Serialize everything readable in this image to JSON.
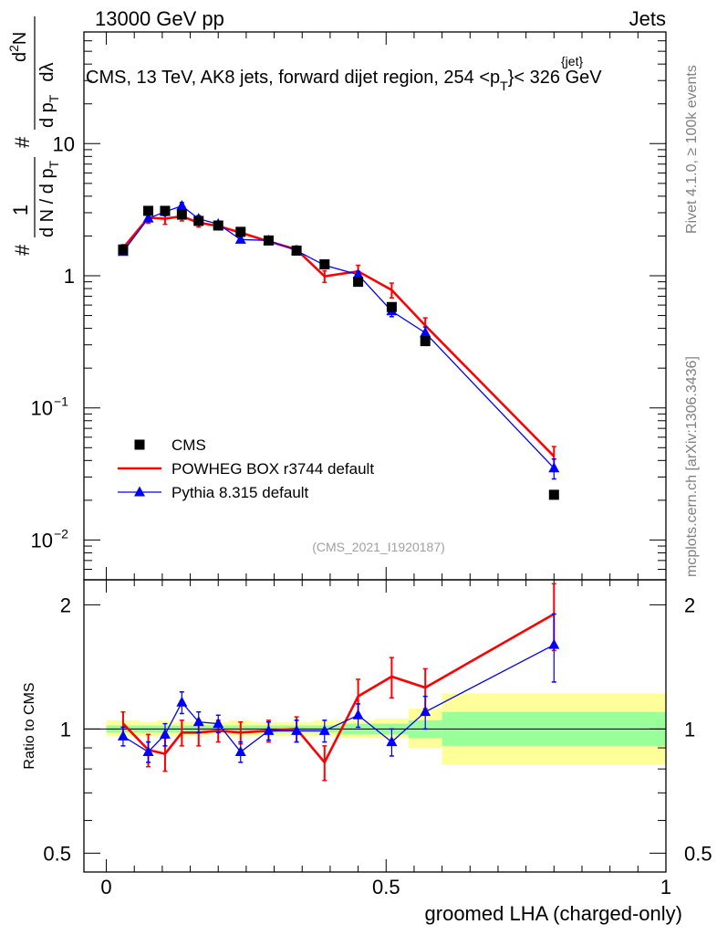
{
  "header": {
    "left": "13000 GeV pp",
    "right": "Jets"
  },
  "side_text": {
    "rivet": "Rivet 4.1.0, ≥ 100k events",
    "mcplots": "mcplots.cern.ch [arXiv:1306.3436]"
  },
  "chart_data": [
    {
      "panel": "main",
      "type": "scatter",
      "title_parts": {
        "before": "CMS, 13 TeV, AK8 jets, forward dijet region, 254 <p",
        "sup": "{jet}",
        "sub": "T",
        "after": "}< 326 GeV"
      },
      "ylabel_parts": {
        "hash1": "#",
        "one": "1",
        "denom_a": "d N / d p",
        "denom_sub": "T",
        "hash2": "#",
        "num_b": "d",
        "num_b_sup": "2",
        "num_b_tail": "N",
        "denom_b": "d p",
        "denom_b_sub": "T",
        "denom_b_tail": "dλ"
      },
      "yscale": "log",
      "ylim": [
        0.005,
        70
      ],
      "xlim": [
        -0.04,
        1.0
      ],
      "yticks": [
        {
          "value": 10,
          "label": "10"
        },
        {
          "value": 1,
          "label": "1"
        },
        {
          "value": 0.1,
          "base": "10",
          "exp": "−1"
        },
        {
          "value": 0.01,
          "base": "10",
          "exp": "−2"
        }
      ],
      "watermark": "(CMS_2021_I1920187)",
      "legend": {
        "position": "lower-left",
        "entries": [
          {
            "label": "CMS",
            "marker": "square",
            "color": "#000000"
          },
          {
            "label": "POWHEG BOX r3744 default",
            "marker": "line",
            "color": "#ff0000"
          },
          {
            "label": "Pythia 8.315 default",
            "marker": "triangle",
            "color": "#0000ff"
          }
        ]
      },
      "series": [
        {
          "name": "CMS",
          "color": "#000000",
          "style": "square",
          "x": [
            0.03,
            0.075,
            0.105,
            0.135,
            0.165,
            0.2,
            0.24,
            0.29,
            0.34,
            0.39,
            0.45,
            0.51,
            0.57,
            0.8
          ],
          "values": [
            1.58,
            3.1,
            3.1,
            2.9,
            2.6,
            2.4,
            2.15,
            1.85,
            1.55,
            1.22,
            0.9,
            0.58,
            0.32,
            0.022
          ],
          "err": [
            0.05,
            0.08,
            0.08,
            0.07,
            0.06,
            0.06,
            0.05,
            0.05,
            0.04,
            0.04,
            0.03,
            0.02,
            0.015,
            0.001
          ]
        },
        {
          "name": "POWHEG BOX r3744 default",
          "color": "#ff0000",
          "style": "line",
          "x": [
            0.03,
            0.075,
            0.105,
            0.135,
            0.165,
            0.2,
            0.24,
            0.29,
            0.34,
            0.39,
            0.45,
            0.51,
            0.57,
            0.8
          ],
          "values": [
            1.62,
            2.75,
            2.7,
            2.82,
            2.52,
            2.38,
            2.12,
            1.82,
            1.58,
            0.99,
            1.08,
            0.78,
            0.42,
            0.043
          ],
          "err": [
            0.1,
            0.25,
            0.25,
            0.22,
            0.18,
            0.15,
            0.12,
            0.1,
            0.1,
            0.1,
            0.12,
            0.1,
            0.06,
            0.008
          ]
        },
        {
          "name": "Pythia 8.315 default",
          "color": "#0000ff",
          "style": "triangle",
          "x": [
            0.03,
            0.075,
            0.105,
            0.135,
            0.165,
            0.2,
            0.24,
            0.29,
            0.34,
            0.39,
            0.45,
            0.51,
            0.57,
            0.8
          ],
          "values": [
            1.52,
            2.72,
            3.05,
            3.38,
            2.7,
            2.46,
            1.88,
            1.85,
            1.55,
            1.2,
            1.02,
            0.54,
            0.37,
            0.035
          ],
          "err": [
            0.07,
            0.15,
            0.2,
            0.2,
            0.15,
            0.12,
            0.1,
            0.08,
            0.08,
            0.07,
            0.06,
            0.05,
            0.04,
            0.006
          ]
        }
      ]
    },
    {
      "panel": "ratio",
      "type": "line",
      "ylabel": "Ratio to CMS",
      "xlabel": "groomed LHA (charged-only)",
      "yscale": "log",
      "ylim": [
        0.45,
        2.3
      ],
      "xlim": [
        -0.04,
        1.0
      ],
      "yticks": [
        {
          "value": 2,
          "label": "2"
        },
        {
          "value": 1,
          "label": "1"
        },
        {
          "value": 0.5,
          "label": "0.5"
        }
      ],
      "xticks": [
        {
          "value": 0,
          "label": "0"
        },
        {
          "value": 0.5,
          "label": "0.5"
        },
        {
          "value": 1,
          "label": "1"
        }
      ],
      "uncertainty_bands": [
        {
          "lo": 0.0,
          "hi": 0.06,
          "stat_lo": 0.98,
          "stat_hi": 1.02,
          "tot_lo": 0.96,
          "tot_hi": 1.05
        },
        {
          "lo": 0.06,
          "hi": 0.09,
          "stat_lo": 0.98,
          "stat_hi": 1.02,
          "tot_lo": 0.96,
          "tot_hi": 1.04
        },
        {
          "lo": 0.09,
          "hi": 0.12,
          "stat_lo": 0.98,
          "stat_hi": 1.02,
          "tot_lo": 0.96,
          "tot_hi": 1.05
        },
        {
          "lo": 0.12,
          "hi": 0.15,
          "stat_lo": 0.98,
          "stat_hi": 1.02,
          "tot_lo": 0.96,
          "tot_hi": 1.04
        },
        {
          "lo": 0.15,
          "hi": 0.18,
          "stat_lo": 0.98,
          "stat_hi": 1.02,
          "tot_lo": 0.96,
          "tot_hi": 1.04
        },
        {
          "lo": 0.18,
          "hi": 0.22,
          "stat_lo": 0.98,
          "stat_hi": 1.02,
          "tot_lo": 0.97,
          "tot_hi": 1.04
        },
        {
          "lo": 0.22,
          "hi": 0.26,
          "stat_lo": 0.98,
          "stat_hi": 1.02,
          "tot_lo": 0.96,
          "tot_hi": 1.05
        },
        {
          "lo": 0.26,
          "hi": 0.32,
          "stat_lo": 0.98,
          "stat_hi": 1.02,
          "tot_lo": 0.96,
          "tot_hi": 1.04
        },
        {
          "lo": 0.32,
          "hi": 0.37,
          "stat_lo": 0.98,
          "stat_hi": 1.02,
          "tot_lo": 0.96,
          "tot_hi": 1.04
        },
        {
          "lo": 0.37,
          "hi": 0.42,
          "stat_lo": 0.98,
          "stat_hi": 1.02,
          "tot_lo": 0.96,
          "tot_hi": 1.05
        },
        {
          "lo": 0.42,
          "hi": 0.48,
          "stat_lo": 0.97,
          "stat_hi": 1.03,
          "tot_lo": 0.95,
          "tot_hi": 1.05
        },
        {
          "lo": 0.48,
          "hi": 0.54,
          "stat_lo": 0.97,
          "stat_hi": 1.03,
          "tot_lo": 0.95,
          "tot_hi": 1.06
        },
        {
          "lo": 0.54,
          "hi": 0.6,
          "stat_lo": 0.95,
          "stat_hi": 1.05,
          "tot_lo": 0.9,
          "tot_hi": 1.12
        },
        {
          "lo": 0.6,
          "hi": 1.0,
          "stat_lo": 0.91,
          "stat_hi": 1.1,
          "tot_lo": 0.82,
          "tot_hi": 1.22
        }
      ],
      "series": [
        {
          "name": "POWHEG BOX r3744 default",
          "color": "#ff0000",
          "style": "line",
          "x": [
            0.03,
            0.075,
            0.105,
            0.135,
            0.165,
            0.2,
            0.24,
            0.29,
            0.34,
            0.39,
            0.45,
            0.51,
            0.57,
            0.8
          ],
          "values": [
            1.03,
            0.89,
            0.87,
            0.98,
            0.98,
            0.99,
            0.98,
            0.99,
            1.0,
            0.83,
            1.2,
            1.34,
            1.26,
            1.9
          ],
          "err": [
            0.07,
            0.08,
            0.08,
            0.07,
            0.07,
            0.06,
            0.06,
            0.06,
            0.07,
            0.08,
            0.12,
            0.15,
            0.14,
            0.35
          ]
        },
        {
          "name": "Pythia 8.315 default",
          "color": "#0000ff",
          "style": "triangle",
          "x": [
            0.03,
            0.075,
            0.105,
            0.135,
            0.165,
            0.2,
            0.24,
            0.29,
            0.34,
            0.39,
            0.45,
            0.51,
            0.57,
            0.8
          ],
          "values": [
            0.96,
            0.88,
            0.97,
            1.16,
            1.04,
            1.03,
            0.88,
            0.99,
            0.99,
            0.99,
            1.08,
            0.93,
            1.1,
            1.6
          ],
          "err": [
            0.05,
            0.05,
            0.06,
            0.07,
            0.06,
            0.05,
            0.05,
            0.05,
            0.06,
            0.06,
            0.07,
            0.07,
            0.1,
            0.3
          ]
        }
      ]
    }
  ]
}
